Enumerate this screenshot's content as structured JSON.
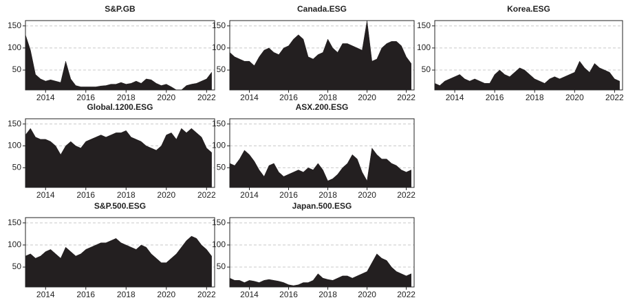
{
  "chart_data": [
    {
      "type": "area",
      "title": "S&P.GB",
      "color": "#231f20",
      "grid": true,
      "xlim": [
        2013,
        2022.4
      ],
      "ylim": [
        5,
        162
      ],
      "xticks": [
        2014,
        2016,
        2018,
        2020,
        2022
      ],
      "yticks": [
        50,
        100,
        150
      ],
      "x": [
        2013,
        2013.25,
        2013.5,
        2013.75,
        2014,
        2014.25,
        2014.5,
        2014.75,
        2015,
        2015.25,
        2015.5,
        2015.75,
        2016,
        2016.25,
        2016.5,
        2016.75,
        2017,
        2017.25,
        2017.5,
        2017.75,
        2018,
        2018.25,
        2018.5,
        2018.75,
        2019,
        2019.25,
        2019.5,
        2019.75,
        2020,
        2020.25,
        2020.5,
        2020.75,
        2021,
        2021.25,
        2021.5,
        2021.75,
        2022,
        2022.25
      ],
      "values": [
        130,
        95,
        40,
        30,
        25,
        28,
        25,
        22,
        70,
        30,
        15,
        12,
        12,
        12,
        12,
        14,
        15,
        18,
        18,
        22,
        18,
        20,
        25,
        20,
        30,
        28,
        20,
        15,
        18,
        12,
        5,
        5,
        15,
        18,
        20,
        25,
        30,
        45
      ]
    },
    {
      "type": "area",
      "title": "Canada.ESG",
      "color": "#231f20",
      "grid": true,
      "xlim": [
        2013,
        2022.4
      ],
      "ylim": [
        5,
        162
      ],
      "xticks": [
        2014,
        2016,
        2018,
        2020,
        2022
      ],
      "yticks": [
        50,
        100,
        150
      ],
      "x": [
        2013,
        2013.25,
        2013.5,
        2013.75,
        2014,
        2014.25,
        2014.5,
        2014.75,
        2015,
        2015.25,
        2015.5,
        2015.75,
        2016,
        2016.25,
        2016.5,
        2016.75,
        2017,
        2017.25,
        2017.5,
        2017.75,
        2018,
        2018.25,
        2018.5,
        2018.75,
        2019,
        2019.25,
        2019.5,
        2019.75,
        2020,
        2020.25,
        2020.5,
        2020.75,
        2021,
        2021.25,
        2021.5,
        2021.75,
        2022,
        2022.25
      ],
      "values": [
        90,
        80,
        75,
        70,
        70,
        60,
        80,
        95,
        100,
        90,
        85,
        100,
        105,
        120,
        130,
        120,
        80,
        75,
        85,
        90,
        120,
        100,
        90,
        110,
        110,
        105,
        100,
        95,
        162,
        70,
        75,
        100,
        110,
        115,
        115,
        105,
        80,
        65
      ]
    },
    {
      "type": "area",
      "title": "Korea.ESG",
      "color": "#231f20",
      "grid": true,
      "xlim": [
        2013,
        2022.4
      ],
      "ylim": [
        5,
        162
      ],
      "xticks": [
        2014,
        2016,
        2018,
        2020,
        2022
      ],
      "yticks": [
        50,
        100,
        150
      ],
      "x": [
        2013,
        2013.25,
        2013.5,
        2013.75,
        2014,
        2014.25,
        2014.5,
        2014.75,
        2015,
        2015.25,
        2015.5,
        2015.75,
        2016,
        2016.25,
        2016.5,
        2016.75,
        2017,
        2017.25,
        2017.5,
        2017.75,
        2018,
        2018.25,
        2018.5,
        2018.75,
        2019,
        2019.25,
        2019.5,
        2019.75,
        2020,
        2020.25,
        2020.5,
        2020.75,
        2021,
        2021.25,
        2021.5,
        2021.75,
        2022,
        2022.25
      ],
      "values": [
        20,
        15,
        25,
        30,
        35,
        40,
        30,
        25,
        30,
        25,
        20,
        20,
        40,
        50,
        40,
        35,
        45,
        55,
        50,
        40,
        30,
        25,
        20,
        30,
        35,
        30,
        35,
        40,
        45,
        70,
        55,
        45,
        65,
        55,
        50,
        45,
        30,
        25
      ]
    },
    {
      "type": "area",
      "title": "Global.1200.ESG",
      "color": "#231f20",
      "grid": true,
      "xlim": [
        2013,
        2022.4
      ],
      "ylim": [
        5,
        162
      ],
      "xticks": [
        2014,
        2016,
        2018,
        2020,
        2022
      ],
      "yticks": [
        50,
        100,
        150
      ],
      "x": [
        2013,
        2013.25,
        2013.5,
        2013.75,
        2014,
        2014.25,
        2014.5,
        2014.75,
        2015,
        2015.25,
        2015.5,
        2015.75,
        2016,
        2016.25,
        2016.5,
        2016.75,
        2017,
        2017.25,
        2017.5,
        2017.75,
        2018,
        2018.25,
        2018.5,
        2018.75,
        2019,
        2019.25,
        2019.5,
        2019.75,
        2020,
        2020.25,
        2020.5,
        2020.75,
        2021,
        2021.25,
        2021.5,
        2021.75,
        2022,
        2022.25
      ],
      "values": [
        125,
        140,
        120,
        115,
        115,
        110,
        100,
        80,
        100,
        110,
        100,
        95,
        110,
        115,
        120,
        125,
        120,
        125,
        130,
        130,
        135,
        120,
        115,
        110,
        100,
        95,
        90,
        100,
        125,
        130,
        115,
        140,
        130,
        140,
        130,
        120,
        95,
        85
      ]
    },
    {
      "type": "area",
      "title": "ASX.200.ESG",
      "color": "#231f20",
      "grid": true,
      "xlim": [
        2013,
        2022.4
      ],
      "ylim": [
        5,
        162
      ],
      "xticks": [
        2014,
        2016,
        2018,
        2020,
        2022
      ],
      "yticks": [
        50,
        100,
        150
      ],
      "x": [
        2013,
        2013.25,
        2013.5,
        2013.75,
        2014,
        2014.25,
        2014.5,
        2014.75,
        2015,
        2015.25,
        2015.5,
        2015.75,
        2016,
        2016.25,
        2016.5,
        2016.75,
        2017,
        2017.25,
        2017.5,
        2017.75,
        2018,
        2018.25,
        2018.5,
        2018.75,
        2019,
        2019.25,
        2019.5,
        2019.75,
        2020,
        2020.25,
        2020.5,
        2020.75,
        2021,
        2021.25,
        2021.5,
        2021.75,
        2022,
        2022.25
      ],
      "values": [
        60,
        55,
        70,
        90,
        80,
        65,
        45,
        30,
        55,
        60,
        40,
        30,
        35,
        40,
        45,
        40,
        50,
        45,
        60,
        45,
        20,
        25,
        35,
        50,
        60,
        80,
        70,
        40,
        20,
        95,
        80,
        70,
        70,
        60,
        55,
        45,
        40,
        45
      ]
    },
    {
      "type": "area",
      "title": "S&P.500.ESG",
      "color": "#231f20",
      "grid": true,
      "xlim": [
        2013,
        2022.4
      ],
      "ylim": [
        5,
        162
      ],
      "xticks": [
        2014,
        2016,
        2018,
        2020,
        2022
      ],
      "yticks": [
        50,
        100,
        150
      ],
      "x": [
        2013,
        2013.25,
        2013.5,
        2013.75,
        2014,
        2014.25,
        2014.5,
        2014.75,
        2015,
        2015.25,
        2015.5,
        2015.75,
        2016,
        2016.25,
        2016.5,
        2016.75,
        2017,
        2017.25,
        2017.5,
        2017.75,
        2018,
        2018.25,
        2018.5,
        2018.75,
        2019,
        2019.25,
        2019.5,
        2019.75,
        2020,
        2020.25,
        2020.5,
        2020.75,
        2021,
        2021.25,
        2021.5,
        2021.75,
        2022,
        2022.25
      ],
      "values": [
        75,
        80,
        70,
        75,
        85,
        90,
        80,
        70,
        95,
        85,
        75,
        80,
        90,
        95,
        100,
        105,
        105,
        110,
        115,
        105,
        100,
        95,
        90,
        100,
        95,
        80,
        70,
        60,
        60,
        70,
        80,
        95,
        110,
        120,
        115,
        100,
        90,
        75
      ]
    },
    {
      "type": "area",
      "title": "Japan.500.ESG",
      "color": "#231f20",
      "grid": true,
      "xlim": [
        2013,
        2022.4
      ],
      "ylim": [
        5,
        162
      ],
      "xticks": [
        2014,
        2016,
        2018,
        2020,
        2022
      ],
      "yticks": [
        50,
        100,
        150
      ],
      "x": [
        2013,
        2013.25,
        2013.5,
        2013.75,
        2014,
        2014.25,
        2014.5,
        2014.75,
        2015,
        2015.25,
        2015.5,
        2015.75,
        2016,
        2016.25,
        2016.5,
        2016.75,
        2017,
        2017.25,
        2017.5,
        2017.75,
        2018,
        2018.25,
        2018.5,
        2018.75,
        2019,
        2019.25,
        2019.5,
        2019.75,
        2020,
        2020.25,
        2020.5,
        2020.75,
        2021,
        2021.25,
        2021.5,
        2021.75,
        2022,
        2022.25
      ],
      "values": [
        25,
        20,
        20,
        15,
        20,
        18,
        15,
        20,
        22,
        20,
        18,
        15,
        10,
        8,
        10,
        15,
        15,
        20,
        35,
        25,
        22,
        20,
        25,
        30,
        30,
        25,
        30,
        35,
        40,
        60,
        80,
        70,
        65,
        50,
        40,
        35,
        30,
        35
      ]
    }
  ]
}
